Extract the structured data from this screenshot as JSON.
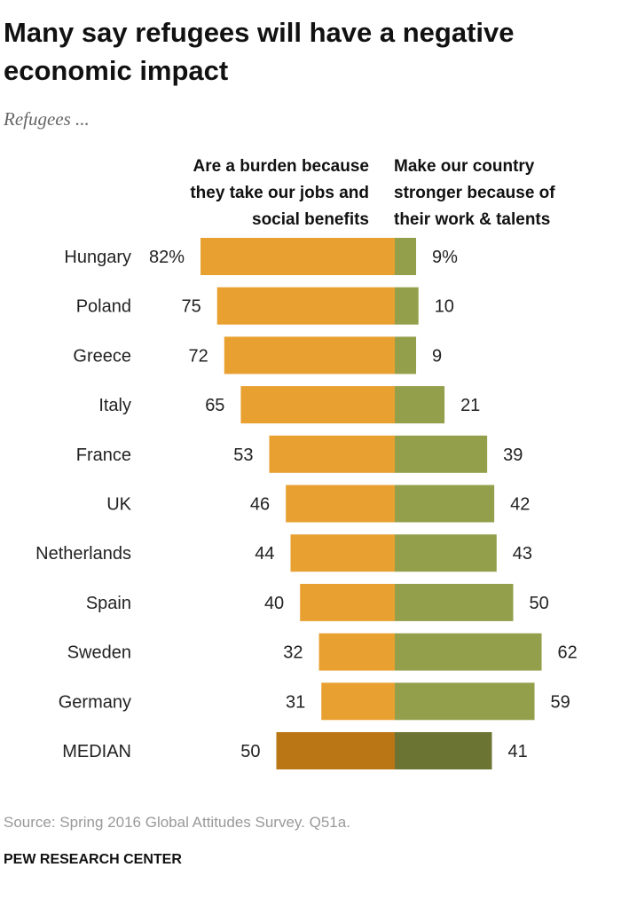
{
  "chart_data": {
    "type": "bar",
    "orientation": "diverging-horizontal",
    "title": "Many say refugees will have a negative economic impact",
    "subtitle": "Refugees ...",
    "categories": [
      "Hungary",
      "Poland",
      "Greece",
      "Italy",
      "France",
      "UK",
      "Netherlands",
      "Spain",
      "Sweden",
      "Germany",
      "MEDIAN"
    ],
    "series": [
      {
        "name": "Are a burden because they take our jobs and social benefits",
        "name_lines": [
          "Are a burden because",
          "they take our jobs and",
          "social benefits"
        ],
        "values": [
          82,
          75,
          72,
          65,
          53,
          46,
          44,
          40,
          32,
          31,
          50
        ],
        "labels": [
          "82%",
          "75",
          "72",
          "65",
          "53",
          "46",
          "44",
          "40",
          "32",
          "31",
          "50"
        ],
        "color": "#E8A030",
        "median_color": "#BA7614"
      },
      {
        "name": "Make our country stronger because of their work & talents",
        "name_lines": [
          "Make our country",
          "stronger because of",
          "their work & talents"
        ],
        "values": [
          9,
          10,
          9,
          21,
          39,
          42,
          43,
          50,
          62,
          59,
          41
        ],
        "labels": [
          "9%",
          "10",
          "9",
          "21",
          "39",
          "42",
          "43",
          "50",
          "62",
          "59",
          "41"
        ],
        "color": "#939F4A",
        "median_color": "#6B7433"
      }
    ],
    "unit": "%",
    "grid": false
  },
  "footer": {
    "source": "Source: Spring 2016 Global Attitudes Survey. Q51a.",
    "org": "PEW RESEARCH CENTER"
  }
}
